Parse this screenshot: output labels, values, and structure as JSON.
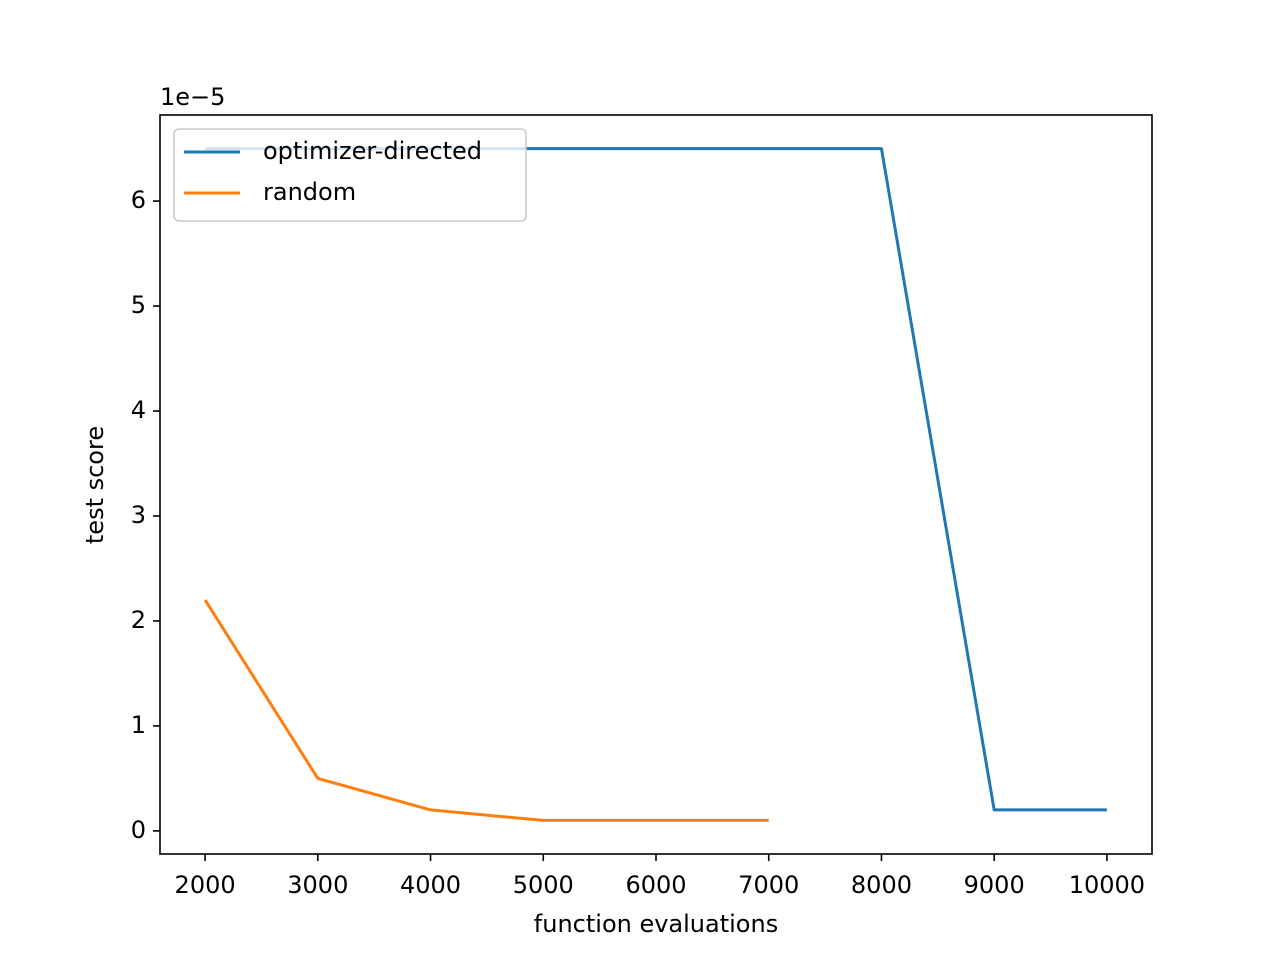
{
  "chart_data": {
    "type": "line",
    "x_label": "function evaluations",
    "y_label": "test score",
    "y_offset_label": "1e−5",
    "x": [
      2000,
      3000,
      4000,
      5000,
      6000,
      7000,
      8000,
      9000,
      10000
    ],
    "series": [
      {
        "name": "optimizer-directed",
        "color": "#1f77b4",
        "values": [
          6.5,
          6.5,
          6.5,
          6.5,
          6.5,
          6.5,
          6.5,
          0.2,
          0.2
        ]
      },
      {
        "name": "random",
        "color": "#ff7f0e",
        "values": [
          2.2,
          0.5,
          0.2,
          0.1,
          0.1,
          0.1,
          null,
          null,
          null
        ]
      }
    ],
    "xlim": [
      1600,
      10400
    ],
    "xticks": [
      2000,
      3000,
      4000,
      5000,
      6000,
      7000,
      8000,
      9000,
      10000
    ],
    "ylim": [
      -0.22,
      6.82
    ],
    "yticks": [
      0,
      1,
      2,
      3,
      4,
      5,
      6
    ],
    "grid": false,
    "legend": "upper-left"
  }
}
